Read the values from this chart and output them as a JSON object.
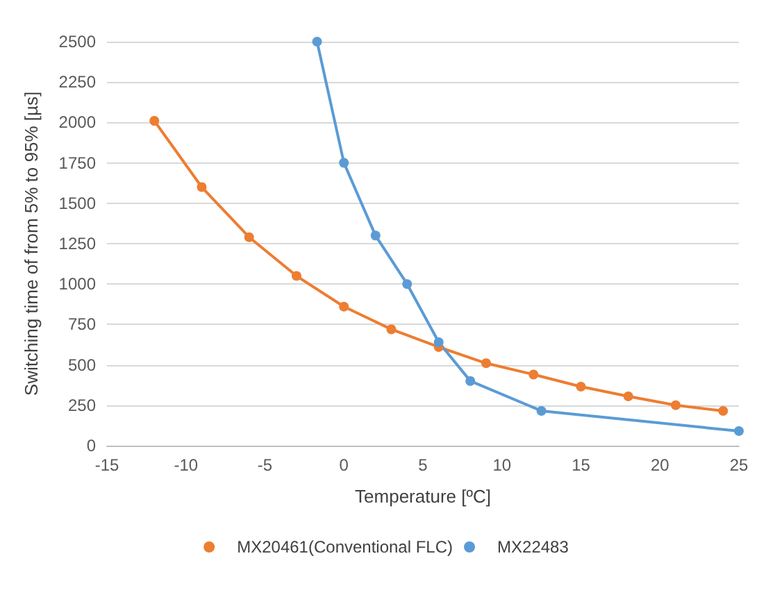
{
  "chart_data": {
    "type": "line",
    "xlabel": "Temperature [ºC]",
    "ylabel": "Switching time of from 5% to 95% [µs]",
    "xlim": [
      -15,
      25
    ],
    "xticks": [
      -15,
      -10,
      -5,
      0,
      5,
      10,
      15,
      20,
      25
    ],
    "ylim": [
      0,
      2500
    ],
    "yticks": [
      0,
      250,
      500,
      750,
      1000,
      1250,
      1500,
      1750,
      2000,
      2250,
      2500
    ],
    "grid": "y",
    "legend": "bottom",
    "marker": "circle",
    "line_style": "solid",
    "series": [
      {
        "name": "MX20461(Conventional FLC)",
        "color": "#ed7d31",
        "x": [
          -12,
          -9,
          -6,
          -3,
          0,
          3,
          6,
          9,
          12,
          15,
          18,
          21,
          24
        ],
        "values": [
          2010,
          1600,
          1290,
          1050,
          860,
          720,
          610,
          510,
          440,
          365,
          305,
          250,
          215
        ]
      },
      {
        "name": "MX22483",
        "color": "#5b9bd5",
        "x": [
          -1.7,
          0,
          2,
          4,
          6,
          8,
          12.5,
          25
        ],
        "values": [
          2500,
          1750,
          1300,
          1000,
          640,
          400,
          215,
          90
        ]
      }
    ]
  }
}
